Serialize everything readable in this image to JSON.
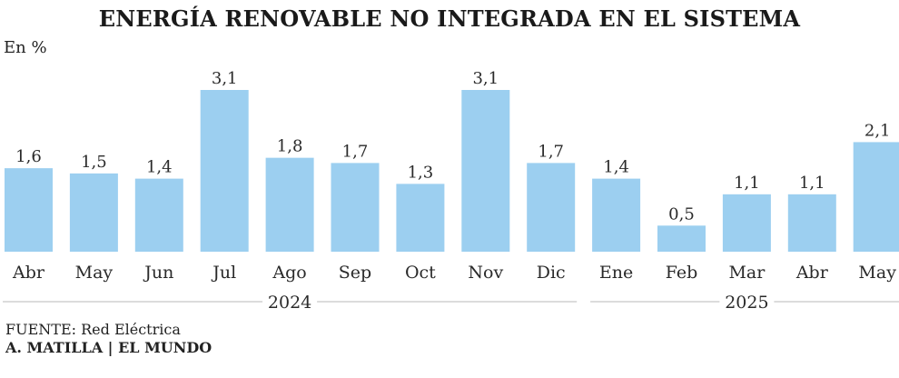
{
  "chart_data": {
    "type": "bar",
    "title": "ENERGÍA RENOVABLE NO INTEGRADA EN EL SISTEMA",
    "unit_label": "En %",
    "categories": [
      "Abr",
      "May",
      "Jun",
      "Jul",
      "Ago",
      "Sep",
      "Oct",
      "Nov",
      "Dic",
      "Ene",
      "Feb",
      "Mar",
      "Abr",
      "May"
    ],
    "values": [
      1.6,
      1.5,
      1.4,
      3.1,
      1.8,
      1.7,
      1.3,
      3.1,
      1.7,
      1.4,
      0.5,
      1.1,
      1.1,
      2.1
    ],
    "value_labels": [
      "1,6",
      "1,5",
      "1,4",
      "3,1",
      "1,8",
      "1,7",
      "1,3",
      "3,1",
      "1,7",
      "1,4",
      "0,5",
      "1,1",
      "1,1",
      "2,1"
    ],
    "groups": [
      {
        "label": "2024",
        "from": 0,
        "to": 8
      },
      {
        "label": "2025",
        "from": 9,
        "to": 13
      }
    ],
    "ylim": [
      0,
      3.2
    ],
    "bar_color": "#9ccff0",
    "grid": false
  },
  "footer": {
    "source": "FUENTE: Red Eléctrica",
    "credit": "A. MATILLA | EL MUNDO"
  }
}
